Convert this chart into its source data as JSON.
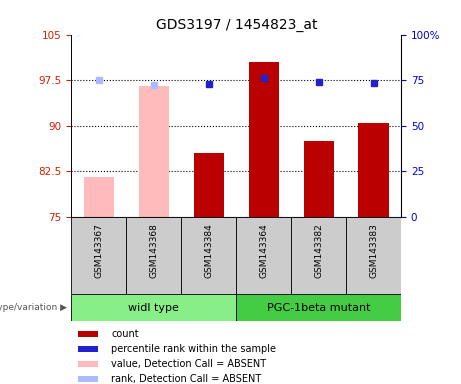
{
  "title": "GDS3197 / 1454823_at",
  "samples": [
    "GSM143367",
    "GSM143368",
    "GSM143384",
    "GSM143364",
    "GSM143382",
    "GSM143383"
  ],
  "groups": [
    "widl type",
    "PGC-1beta mutant"
  ],
  "bar_values": [
    81.5,
    96.5,
    85.5,
    100.5,
    87.5,
    90.5
  ],
  "bar_colors": [
    "#ffbbbb",
    "#ffbbbb",
    "#bb0000",
    "#bb0000",
    "#bb0000",
    "#bb0000"
  ],
  "dot_values_left": [
    97.5,
    96.7,
    96.8,
    97.8,
    97.2,
    97.0
  ],
  "dot_colors": [
    "#aabbff",
    "#aabbff",
    "#2222cc",
    "#2222cc",
    "#2222cc",
    "#2222cc"
  ],
  "ylim_left": [
    75,
    105
  ],
  "ylim_right": [
    0,
    100
  ],
  "yticks_left": [
    75,
    82.5,
    90,
    97.5,
    105
  ],
  "yticks_right": [
    0,
    25,
    50,
    75,
    100
  ],
  "hlines": [
    82.5,
    90,
    97.5
  ],
  "legend_items": [
    {
      "label": "count",
      "color": "#bb0000"
    },
    {
      "label": "percentile rank within the sample",
      "color": "#2222cc"
    },
    {
      "label": "value, Detection Call = ABSENT",
      "color": "#ffbbbb"
    },
    {
      "label": "rank, Detection Call = ABSENT",
      "color": "#aabbff"
    }
  ],
  "genotype_label": "genotype/variation",
  "group1_color": "#88ee88",
  "group2_color": "#44cc44",
  "bar_width": 0.55,
  "title_fontsize": 10,
  "tick_fontsize": 7.5,
  "sample_fontsize": 6.5,
  "group_fontsize": 8,
  "legend_fontsize": 7
}
